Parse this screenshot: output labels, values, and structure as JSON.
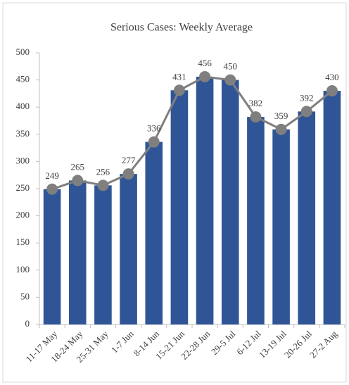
{
  "chart_data": {
    "type": "bar",
    "title": "Serious Cases: Weekly Average",
    "categories": [
      "11-17 May",
      "18-24 May",
      "25-31 May",
      "1-7 Jun",
      "8-14 Jun",
      "15-21 Jun",
      "22-28 Jun",
      "29-5 Jul",
      "6-12 Jul",
      "13-19 Jul",
      "20-26 Jul",
      "27-2 Aug"
    ],
    "values": [
      249,
      265,
      256,
      277,
      336,
      431,
      456,
      450,
      382,
      359,
      392,
      430
    ],
    "color": "#2f5597",
    "line_overlay": true,
    "line_color": "#7f7f7f",
    "ylim": [
      0,
      500
    ],
    "yticks": [
      0,
      50,
      100,
      150,
      200,
      250,
      300,
      350,
      400,
      450,
      500
    ],
    "grid": false
  }
}
